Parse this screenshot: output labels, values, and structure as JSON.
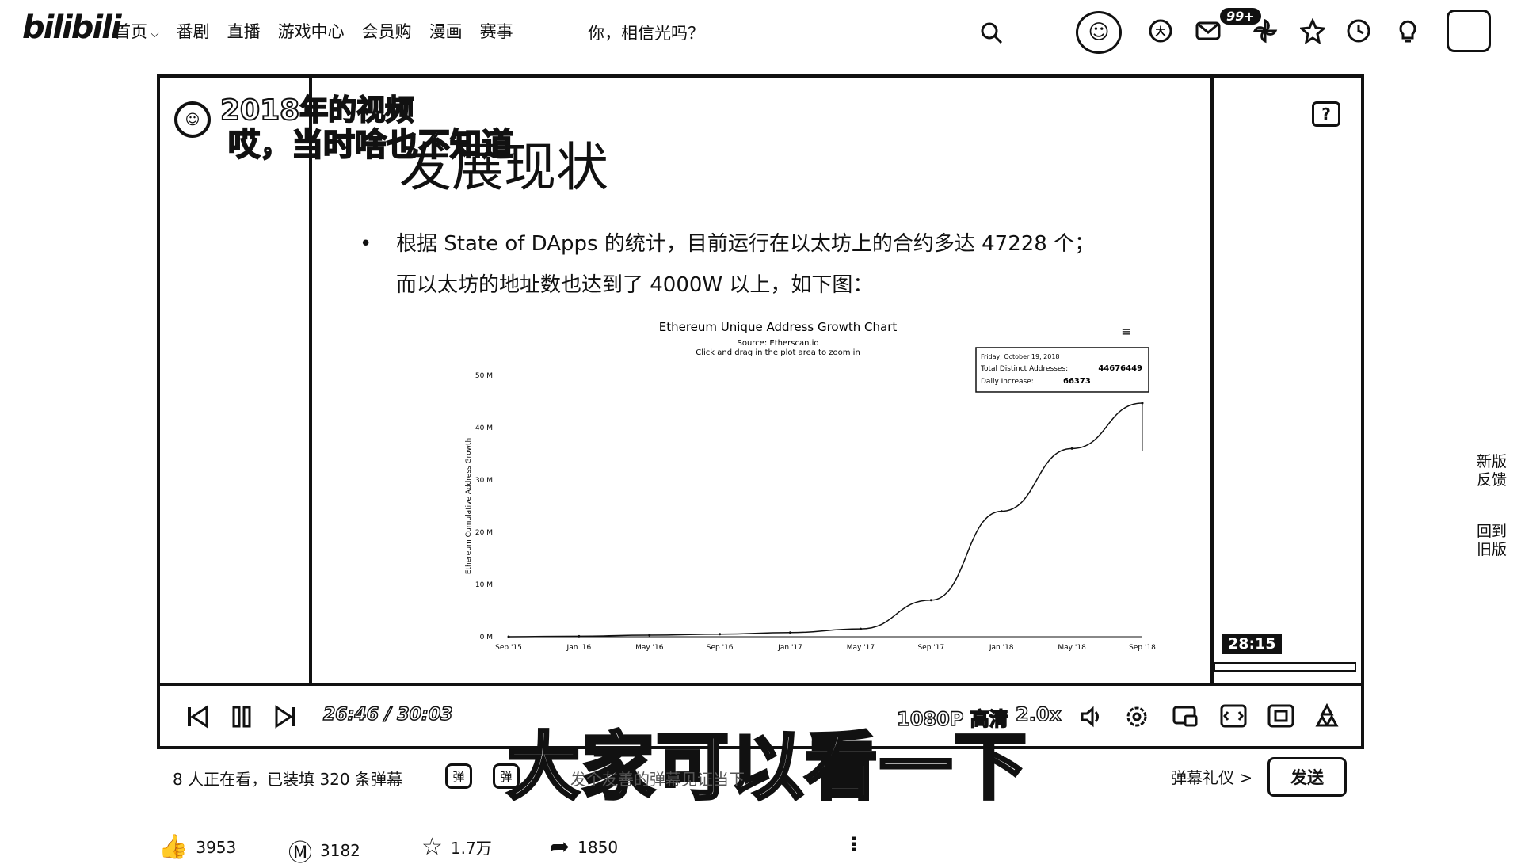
{
  "header": {
    "logo": "bilibili",
    "nav": [
      {
        "label": "首页",
        "has_dropdown": true
      },
      {
        "label": "番剧"
      },
      {
        "label": "直播"
      },
      {
        "label": "游戏中心"
      },
      {
        "label": "会员购"
      },
      {
        "label": "漫画"
      },
      {
        "label": "赛事"
      }
    ],
    "search_text": "你，相信光吗？",
    "message_badge": "99+",
    "icons": [
      "search-icon",
      "avatar",
      "big-vip-icon",
      "message-icon",
      "dynamic-icon",
      "favorite-icon",
      "history-icon",
      "creation-icon",
      "upload-icon"
    ]
  },
  "player": {
    "slide": {
      "title": "发展现状",
      "bullet_line1": "根据 State of DApps 的统计，目前运行在以太坊上的合约多达 47228 个；",
      "bullet_line2": "而以太坊的地址数也达到了 4000W 以上，如下图："
    },
    "danmaku": {
      "line1": "2018年的视频",
      "line2": "哎，当时啥也不知道"
    },
    "time_tooltip": "28:15",
    "controls": {
      "current_time": "26:46",
      "separator": "/",
      "duration": "30:03",
      "quality": "1080P 高清",
      "speed": "2.0x"
    },
    "subtitle": "大家可以看一下"
  },
  "chart_data": {
    "type": "line",
    "title": "Ethereum Unique Address Growth Chart",
    "subtitle": "Source: Etherscan.io",
    "subtitle2": "Click and drag in the plot area to zoom in",
    "ylabel": "Ethereum Cumulative Address Growth",
    "xlabel": "",
    "categories": [
      "Sep '15",
      "Jan '16",
      "May '16",
      "Sep '16",
      "Jan '17",
      "May '17",
      "Sep '17",
      "Jan '18",
      "May '18",
      "Sep '18"
    ],
    "y_ticks": [
      "0 M",
      "10 M",
      "20 M",
      "30 M",
      "40 M",
      "50 M"
    ],
    "ylim": [
      0,
      50
    ],
    "series": [
      {
        "values": [
          0,
          0.1,
          0.3,
          0.5,
          0.8,
          1.5,
          7,
          24,
          36,
          44.7
        ]
      }
    ],
    "tooltip": {
      "date": "Friday, October 19, 2018",
      "total_label": "Total Distinct Addresses:",
      "total_value": "44676449",
      "daily_label": "Daily Increase:",
      "daily_value": "66373"
    },
    "grid": false
  },
  "below_player": {
    "viewer_info": "8 人正在看，已装填 320 条弹幕",
    "dm_placeholder": "发个友善的弹幕见证当下",
    "etiquette": "弹幕礼仪 >",
    "send": "发送"
  },
  "side_buttons": {
    "feedback": "新版反馈",
    "old_version": "回到旧版"
  },
  "stats": {
    "likes": "3953",
    "coins": "3182",
    "favorites": "1.7万",
    "shares": "1850"
  }
}
